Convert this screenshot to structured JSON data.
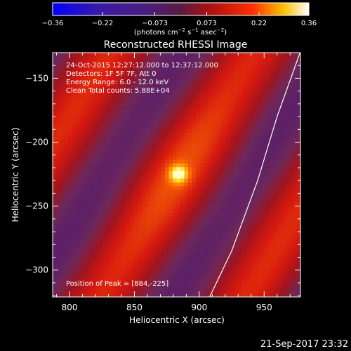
{
  "chart_data": {
    "type": "heatmap",
    "title": "Reconstructed RHESSI Image",
    "xlabel": "Heliocentric X (arcsec)",
    "ylabel": "Heliocentric Y (arcsec)",
    "xlim": [
      787,
      978
    ],
    "ylim": [
      -321,
      -130
    ],
    "x_ticks": [
      800,
      850,
      900,
      950
    ],
    "y_ticks": [
      -150,
      -200,
      -250,
      -300
    ],
    "x_tick_labels": [
      "800",
      "850",
      "900",
      "950"
    ],
    "y_tick_labels": [
      "−150",
      "−200",
      "−250",
      "−300"
    ],
    "colorbar": {
      "range": [
        -0.36,
        0.36
      ],
      "ticks": [
        -0.36,
        -0.22,
        -0.073,
        0.073,
        0.22,
        0.36
      ],
      "tick_labels": [
        "−0.36",
        "−0.22",
        "−0.073",
        "0.073",
        "0.22",
        "0.36"
      ],
      "unit_html": "(photons cm<tspan dy='-4' font-size='7'>−2</tspan><tspan dy='4'> s</tspan><tspan dy='-4' font-size='7'>−1</tspan><tspan dy='4'> asec</tspan><tspan dy='-4' font-size='7'>−2</tspan><tspan dy='4'>)</tspan>"
    },
    "info_lines": [
      "24-Oct-2015 12:27:12.000 to 12:37:12.000",
      "Detectors: 1F 5F 7F, Att 0",
      "Energy Range: 6.0 - 12.0 keV",
      "Clean    Total counts: 5.88E+04"
    ],
    "peak_label": "Position of Peak = [884,-225]",
    "peak": {
      "x": 884,
      "y": -225,
      "value": 0.36
    },
    "limb_curve": [
      [
        978,
        -129
      ],
      [
        960,
        -180
      ],
      [
        945,
        -230
      ],
      [
        925,
        -285
      ],
      [
        908,
        -321
      ]
    ],
    "colors": {
      "negative": "#5a2a9a",
      "positive": "#e02010",
      "peak": "#ffffa0",
      "limb": "#ffffff"
    }
  },
  "footer": {
    "timestamp": "21-Sep-2017 23:32"
  }
}
